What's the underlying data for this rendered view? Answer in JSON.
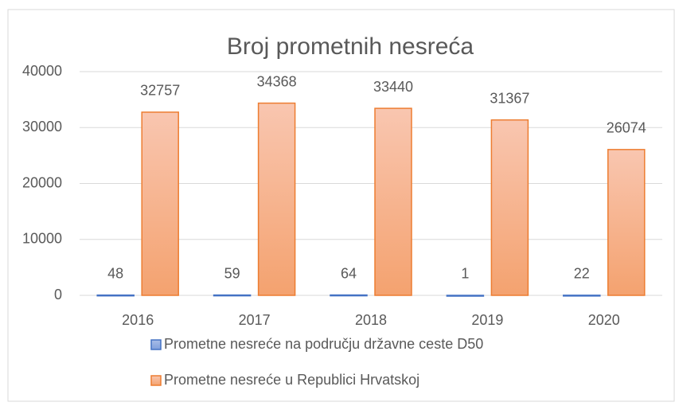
{
  "chart_data": {
    "type": "bar",
    "title": "Broj prometnih nesreća",
    "categories": [
      "2016",
      "2017",
      "2018",
      "2019",
      "2020"
    ],
    "series": [
      {
        "name": "Prometne nesreće na području državne ceste D50",
        "color": "#4472c4",
        "values": [
          48,
          59,
          64,
          1,
          22
        ]
      },
      {
        "name": "Prometne nesreće u Republici Hrvatskoj",
        "color": "#ed7d31",
        "values": [
          32757,
          34368,
          33440,
          31367,
          26074
        ]
      }
    ],
    "ylim": [
      0,
      40000
    ],
    "yticks": [
      0,
      10000,
      20000,
      30000,
      40000
    ],
    "grid": true
  }
}
